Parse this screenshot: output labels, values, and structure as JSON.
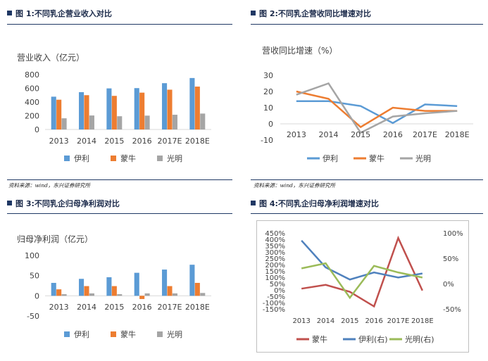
{
  "figures": [
    {
      "title": "图 1:不同乳企营业收入对比",
      "source": "资料来源：wind，东兴证券研究所"
    },
    {
      "title": "图 2:不同乳企营收同比增速对比",
      "source": "资料来源：wind，东兴证券研究所"
    },
    {
      "title": "图 3:不同乳企归母净利润对比",
      "source": ""
    },
    {
      "title": "图 4:不同乳企归母净利润增速对比",
      "source": ""
    }
  ],
  "colors": {
    "yili": "#5b9bd5",
    "mengniu": "#ed7d31",
    "guangming": "#a5a5a5",
    "mengniu_line": "#c0504d",
    "yili_line": "#4f81bd",
    "guangming_line": "#9bbb59",
    "title_bar": "#1f3864"
  },
  "chart_data": [
    {
      "type": "bar",
      "title": "营业收入（亿元）",
      "categories": [
        "2013",
        "2014",
        "2015",
        "2016",
        "2017E",
        "2018E"
      ],
      "ylim": [
        0,
        800
      ],
      "yticks": [
        0,
        200,
        400,
        600,
        800
      ],
      "series": [
        {
          "name": "伊利",
          "values": [
            478,
            544,
            599,
            603,
            675,
            750
          ]
        },
        {
          "name": "蒙牛",
          "values": [
            434,
            500,
            490,
            537,
            580,
            625
          ]
        },
        {
          "name": "光明",
          "values": [
            163,
            204,
            193,
            202,
            215,
            232
          ]
        }
      ],
      "legend": "bottom"
    },
    {
      "type": "line",
      "title": "营收同比增速（%）",
      "categories": [
        "2013",
        "2014",
        "2015",
        "2016",
        "2017E",
        "2018E"
      ],
      "ylim": [
        -10,
        30
      ],
      "yticks": [
        -10,
        0,
        10,
        20,
        30
      ],
      "series": [
        {
          "name": "伊利",
          "values": [
            14,
            14,
            11,
            0.5,
            12,
            11
          ]
        },
        {
          "name": "蒙牛",
          "values": [
            20,
            15.5,
            -2,
            10,
            8,
            8
          ]
        },
        {
          "name": "光明",
          "values": [
            18,
            25,
            -5.5,
            4.5,
            6.5,
            8
          ]
        }
      ],
      "legend": "bottom"
    },
    {
      "type": "bar",
      "title": "归母净利润（亿元）",
      "categories": [
        "2013",
        "2014",
        "2015",
        "2016",
        "2017E",
        "2018E"
      ],
      "ylim": [
        -50,
        100
      ],
      "yticks": [
        -50,
        0,
        50,
        100
      ],
      "series": [
        {
          "name": "伊利",
          "values": [
            32,
            42,
            46,
            57,
            65,
            77
          ]
        },
        {
          "name": "蒙牛",
          "values": [
            16,
            24,
            24,
            -8,
            24,
            32
          ]
        },
        {
          "name": "光明",
          "values": [
            4,
            6,
            4,
            6,
            6,
            7
          ]
        }
      ],
      "legend": "bottom"
    },
    {
      "type": "line",
      "title": "",
      "categories": [
        "2013",
        "2014",
        "2015",
        "2016",
        "2017E",
        "2018E"
      ],
      "ylim": [
        -150,
        450
      ],
      "yticks": [
        -150,
        -100,
        -50,
        0,
        50,
        100,
        150,
        200,
        250,
        300,
        350,
        400,
        450
      ],
      "ytick_labels": [
        "-150%",
        "-100%",
        "-50%",
        "0%",
        "50%",
        "100%",
        "150%",
        "200%",
        "250%",
        "300%",
        "350%",
        "400%",
        "450%"
      ],
      "y2lim": [
        -50,
        100
      ],
      "y2ticks": [
        -50,
        0,
        50,
        100
      ],
      "y2tick_labels": [
        "-50%",
        "0%",
        "50%",
        "100%"
      ],
      "series": [
        {
          "name": "蒙牛",
          "axis": "left",
          "values": [
            10,
            40,
            -15,
            -130,
            410,
            -5
          ]
        },
        {
          "name": "伊利(右)",
          "axis": "right",
          "values": [
            85,
            32,
            8,
            22,
            12,
            20
          ]
        },
        {
          "name": "光明(右)",
          "axis": "right",
          "values": [
            30,
            40,
            -28,
            35,
            22,
            12
          ]
        }
      ],
      "legend": "bottom"
    }
  ]
}
